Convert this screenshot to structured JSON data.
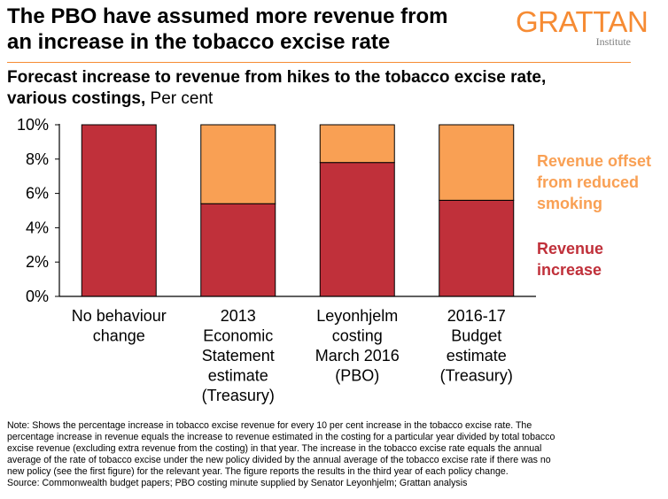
{
  "header": {
    "title_line1": "The PBO have assumed more revenue from",
    "title_line2": "an increase in the tobacco excise rate",
    "logo_name": "GRATTAN",
    "logo_sub": "Institute"
  },
  "subtitle": {
    "bold_line1": "Forecast increase to revenue from hikes to the tobacco excise rate,",
    "bold_line2": "various costings,",
    "unit": " Per cent"
  },
  "chart_data": {
    "type": "bar",
    "stacked": true,
    "categories": [
      [
        "No behaviour",
        "change"
      ],
      [
        "2013",
        "Economic",
        "Statement",
        "estimate",
        "(Treasury)"
      ],
      [
        "Leyonhjelm",
        "costing",
        "March 2016",
        "(PBO)"
      ],
      [
        "2016-17",
        "Budget",
        "estimate",
        "(Treasury)"
      ]
    ],
    "series": [
      {
        "name": "Revenue increase",
        "label_lines": [
          "Revenue",
          "increase"
        ],
        "color": "#c0303a",
        "values": [
          10,
          5.4,
          7.8,
          5.6
        ]
      },
      {
        "name": "Revenue offset from reduced smoking",
        "label_lines": [
          "Revenue offset",
          "from reduced",
          "smoking"
        ],
        "color": "#f9a054",
        "values": [
          0,
          4.6,
          2.2,
          4.4
        ]
      }
    ],
    "y_ticks": [
      "0%",
      "2%",
      "4%",
      "6%",
      "8%",
      "10%"
    ],
    "ylim": [
      0,
      10
    ],
    "legend_position": "right, inline labels",
    "grid": false
  },
  "notes": {
    "lines": [
      "Note: Shows the percentage increase in tobacco excise revenue for every 10 per cent increase in the tobacco excise rate.  The",
      "percentage increase in revenue equals the increase to revenue estimated in the costing for a particular year divided by total tobacco",
      "excise revenue (excluding extra revenue from the costing) in that year. The increase in the tobacco excise rate equals the annual",
      "average of the rate of tobacco excise under the new policy divided by the annual average of the tobacco excise rate if there was no",
      "new policy (see the first figure) for the relevant year.  The figure reports the results in the third year of each policy change.",
      "Source: Commonwealth budget papers; PBO costing minute supplied by Senator Leyonhjelm; Grattan analysis"
    ]
  }
}
